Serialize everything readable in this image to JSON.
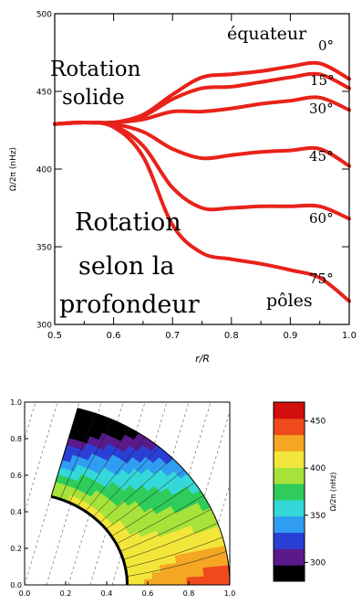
{
  "chart_data": [
    {
      "type": "line",
      "title": "",
      "xlabel": "r/R",
      "ylabel": "Ω/2π (nHz)",
      "xlim": [
        0.5,
        1.0
      ],
      "ylim": [
        300,
        500
      ],
      "x_ticks": [
        0.5,
        0.6,
        0.7,
        0.8,
        0.9,
        1.0
      ],
      "y_ticks": [
        300,
        350,
        400,
        450,
        500
      ],
      "x_tick_labels": [
        "0.5",
        "0.6",
        "0.7",
        "0.8",
        "0.9",
        "1.0"
      ],
      "y_tick_labels": [
        "300",
        "350",
        "400",
        "450",
        "500"
      ],
      "grid": false,
      "series": [
        {
          "name": "0°",
          "x": [
            0.5,
            0.55,
            0.6,
            0.65,
            0.7,
            0.75,
            0.8,
            0.85,
            0.9,
            0.95,
            1.0
          ],
          "y": [
            429,
            430,
            430,
            435,
            448,
            459,
            461,
            463,
            466,
            468,
            458
          ]
        },
        {
          "name": "15°",
          "x": [
            0.5,
            0.55,
            0.6,
            0.65,
            0.7,
            0.75,
            0.8,
            0.85,
            0.9,
            0.95,
            1.0
          ],
          "y": [
            429,
            430,
            430,
            434,
            445,
            452,
            453,
            456,
            459,
            461,
            452
          ]
        },
        {
          "name": "30°",
          "x": [
            0.5,
            0.55,
            0.6,
            0.65,
            0.7,
            0.75,
            0.8,
            0.85,
            0.9,
            0.95,
            1.0
          ],
          "y": [
            429,
            430,
            430,
            432,
            437,
            437,
            439,
            442,
            444,
            446,
            438
          ]
        },
        {
          "name": "45°",
          "x": [
            0.5,
            0.55,
            0.6,
            0.65,
            0.7,
            0.75,
            0.8,
            0.85,
            0.9,
            0.95,
            1.0
          ],
          "y": [
            429,
            430,
            429,
            424,
            413,
            407,
            409,
            411,
            412,
            413,
            402
          ]
        },
        {
          "name": "60°",
          "x": [
            0.5,
            0.55,
            0.6,
            0.65,
            0.7,
            0.75,
            0.8,
            0.85,
            0.9,
            0.95,
            1.0
          ],
          "y": [
            429,
            430,
            428,
            415,
            388,
            375,
            375,
            376,
            376,
            376,
            368
          ]
        },
        {
          "name": "75°",
          "x": [
            0.5,
            0.55,
            0.6,
            0.65,
            0.7,
            0.75,
            0.8,
            0.85,
            0.9,
            0.95,
            1.0
          ],
          "y": [
            429,
            430,
            427,
            408,
            364,
            346,
            342,
            339,
            335,
            330,
            315
          ]
        }
      ],
      "annotations": [
        "équateur",
        "Rotation",
        "solide",
        "Rotation",
        "selon la",
        "profondeur",
        "pôles"
      ],
      "colors": {
        "series": "#e8221a",
        "axis": "#000000"
      }
    },
    {
      "type": "heatmap",
      "title": "",
      "xlim": [
        0.0,
        1.0
      ],
      "ylim": [
        0.0,
        1.0
      ],
      "x_tick_labels": [
        "0.0",
        "0.2",
        "0.4",
        "0.6",
        "0.8",
        "1.0"
      ],
      "y_tick_labels": [
        "0.0",
        "0.2",
        "0.4",
        "0.6",
        "0.8",
        "1.0"
      ],
      "colorbar": {
        "label": "Ω/2π (nHz)",
        "range": [
          280,
          470
        ],
        "ticks": [
          300,
          350,
          400,
          450
        ],
        "tick_labels": [
          "300",
          "350",
          "400",
          "450"
        ]
      },
      "colors": [
        "#000000",
        "#5a1a8c",
        "#2a3fd6",
        "#2f9df2",
        "#35d8d8",
        "#2ecc5a",
        "#a6e23a",
        "#f3e63a",
        "#f5a623",
        "#ee4a1c",
        "#d40d0d"
      ]
    }
  ]
}
